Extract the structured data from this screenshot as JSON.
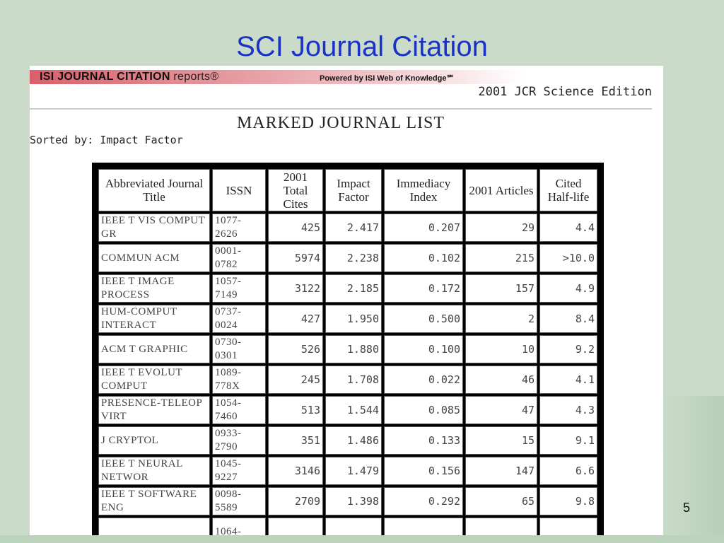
{
  "slide": {
    "title": "SCI Journal Citation",
    "page_number": "5"
  },
  "jcr": {
    "brand_bold": "ISI JOURNAL CITATION",
    "brand_light": "reports®",
    "powered": "Powered by ISI Web of Knowledge℠",
    "edition": "2001 JCR Science Edition",
    "heading": "MARKED JOURNAL LIST",
    "sorted": "Sorted by: Impact Factor",
    "columns": [
      "Abbreviated Journal Title",
      "ISSN",
      "2001 Total Cites",
      "Impact Factor",
      "Immediacy Index",
      "2001 Articles",
      "Cited Half-life"
    ],
    "rows": [
      [
        "IEEE T VIS COMPUT GR",
        "1077-2626",
        "425",
        "2.417",
        "0.207",
        "29",
        "4.4"
      ],
      [
        "COMMUN ACM",
        "0001-0782",
        "5974",
        "2.238",
        "0.102",
        "215",
        ">10.0"
      ],
      [
        "IEEE T IMAGE PROCESS",
        "1057-7149",
        "3122",
        "2.185",
        "0.172",
        "157",
        "4.9"
      ],
      [
        "HUM-COMPUT INTERACT",
        "0737-0024",
        "427",
        "1.950",
        "0.500",
        "2",
        "8.4"
      ],
      [
        "ACM T GRAPHIC",
        "0730-0301",
        "526",
        "1.880",
        "0.100",
        "10",
        "9.2"
      ],
      [
        "IEEE T EVOLUT COMPUT",
        "1089-778X",
        "245",
        "1.708",
        "0.022",
        "46",
        "4.1"
      ],
      [
        "PRESENCE-TELEOP VIRT",
        "1054-7460",
        "513",
        "1.544",
        "0.085",
        "47",
        "4.3"
      ],
      [
        "J CRYPTOL",
        "0933-2790",
        "351",
        "1.486",
        "0.133",
        "15",
        "9.1"
      ],
      [
        "IEEE T NEURAL NETWOR",
        "1045-9227",
        "3146",
        "1.479",
        "0.156",
        "147",
        "6.6"
      ],
      [
        "IEEE T SOFTWARE ENG",
        "0098-5589",
        "2709",
        "1.398",
        "0.292",
        "65",
        "9.8"
      ],
      [
        "",
        "1064-",
        "",
        "",
        "",
        "",
        ""
      ]
    ]
  }
}
